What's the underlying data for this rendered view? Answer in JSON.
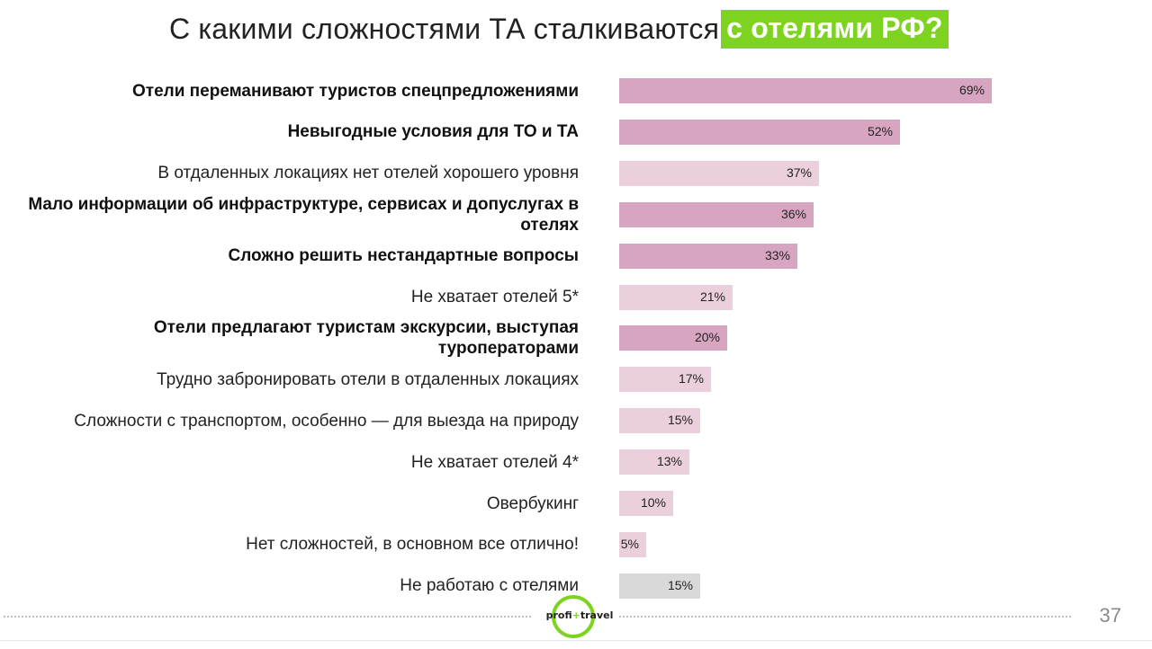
{
  "header": {
    "title_main": "С какими сложностями ТА сталкиваются",
    "title_highlight": "с отелями РФ?"
  },
  "colors": {
    "strong": "#d7a5c0",
    "light": "#ebcfdc",
    "neutral": "#d9d9d9",
    "highlight": "#7ed321"
  },
  "chart_data": {
    "type": "bar",
    "orientation": "horizontal",
    "value_unit": "%",
    "xlim": [
      0,
      100
    ],
    "grid": false,
    "bars": [
      {
        "label": "Отели переманивают туристов спецпредложениями",
        "value": 69,
        "value_label": "69%",
        "style": "strong",
        "bold": true
      },
      {
        "label": "Невыгодные условия для ТО и ТА",
        "value": 52,
        "value_label": "52%",
        "style": "strong",
        "bold": true
      },
      {
        "label": "В отдаленных локациях нет отелей хорошего уровня",
        "value": 37,
        "value_label": "37%",
        "style": "light",
        "bold": false
      },
      {
        "label": "Мало информации об инфраструктуре, сервисах и допуслугах в отелях",
        "value": 36,
        "value_label": "36%",
        "style": "strong",
        "bold": true
      },
      {
        "label": "Сложно решить нестандартные вопросы",
        "value": 33,
        "value_label": "33%",
        "style": "strong",
        "bold": true
      },
      {
        "label": "Не хватает отелей 5*",
        "value": 21,
        "value_label": "21%",
        "style": "light",
        "bold": false
      },
      {
        "label": "Отели предлагают туристам экскурсии, выступая туроператорами",
        "value": 20,
        "value_label": "20%",
        "style": "strong",
        "bold": true
      },
      {
        "label": "Трудно забронировать отели в отдаленных локациях",
        "value": 17,
        "value_label": "17%",
        "style": "light",
        "bold": false
      },
      {
        "label": "Сложности с транспортом, особенно — для выезда на природу",
        "value": 15,
        "value_label": "15%",
        "style": "light",
        "bold": false
      },
      {
        "label": "Не хватает отелей 4*",
        "value": 13,
        "value_label": "13%",
        "style": "light",
        "bold": false
      },
      {
        "label": "Овербукинг",
        "value": 10,
        "value_label": "10%",
        "style": "light",
        "bold": false
      },
      {
        "label": "Нет сложностей, в основном все отлично!",
        "value": 5,
        "value_label": "5%",
        "style": "light",
        "bold": false
      },
      {
        "label": "Не работаю с отелями",
        "value": 15,
        "value_label": "15%",
        "style": "neutral",
        "bold": false
      }
    ]
  },
  "footer": {
    "logo_left": "profi",
    "logo_plus": "+",
    "logo_right": "travel",
    "page_number": "37"
  }
}
